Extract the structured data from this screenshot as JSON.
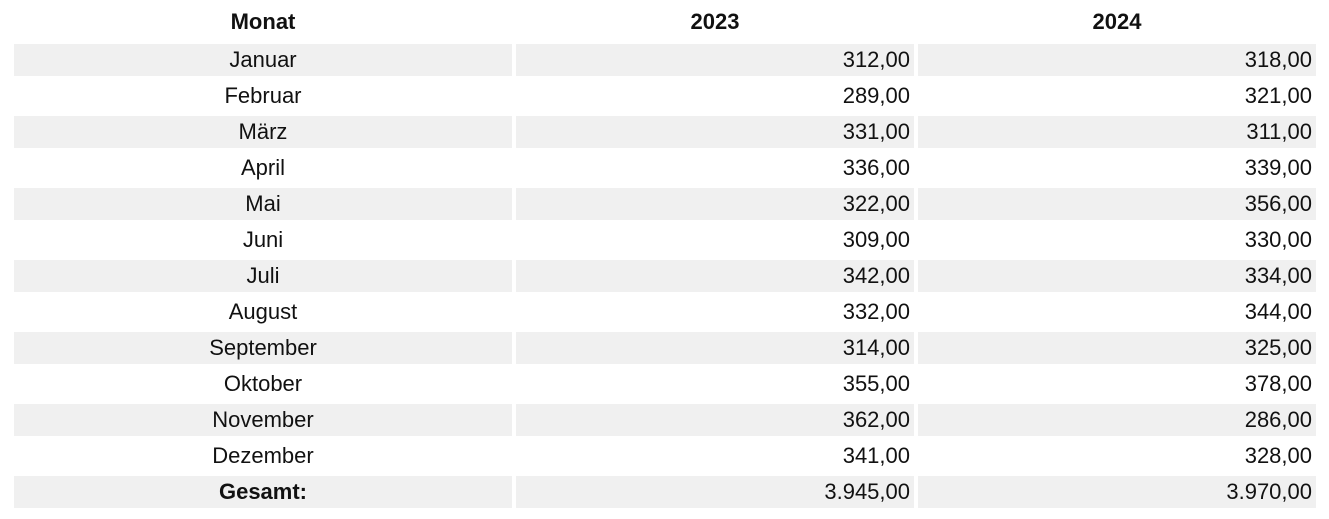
{
  "table": {
    "headers": [
      "Monat",
      "2023",
      "2024"
    ],
    "rows": [
      {
        "month": "Januar",
        "y2023": "312,00",
        "y2024": "318,00"
      },
      {
        "month": "Februar",
        "y2023": "289,00",
        "y2024": "321,00"
      },
      {
        "month": "März",
        "y2023": "331,00",
        "y2024": "311,00"
      },
      {
        "month": "April",
        "y2023": "336,00",
        "y2024": "339,00"
      },
      {
        "month": "Mai",
        "y2023": "322,00",
        "y2024": "356,00"
      },
      {
        "month": "Juni",
        "y2023": "309,00",
        "y2024": "330,00"
      },
      {
        "month": "Juli",
        "y2023": "342,00",
        "y2024": "334,00"
      },
      {
        "month": "August",
        "y2023": "332,00",
        "y2024": "344,00"
      },
      {
        "month": "September",
        "y2023": "314,00",
        "y2024": "325,00"
      },
      {
        "month": "Oktober",
        "y2023": "355,00",
        "y2024": "378,00"
      },
      {
        "month": "November",
        "y2023": "362,00",
        "y2024": "286,00"
      },
      {
        "month": "Dezember",
        "y2023": "341,00",
        "y2024": "328,00"
      }
    ],
    "total": {
      "label": "Gesamt:",
      "y2023": "3.945,00",
      "y2024": "3.970,00"
    }
  },
  "colors": {
    "stripe": "#f0f0f0",
    "text": "#111111",
    "background": "#ffffff"
  }
}
